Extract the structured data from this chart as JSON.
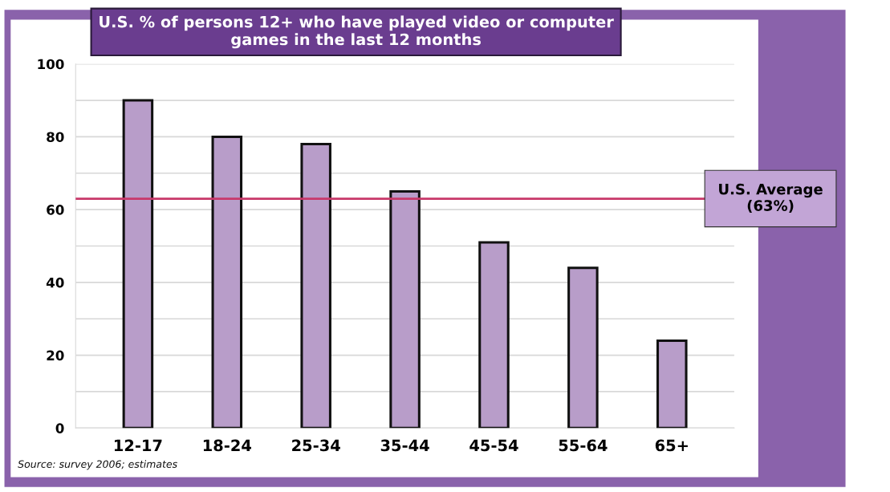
{
  "chart_data": {
    "type": "bar",
    "title": "U.S. % of persons 12+ who have played video or computer\ngames in the last 12 months",
    "categories": [
      "12-17",
      "18-24",
      "25-34",
      "35-44",
      "45-54",
      "55-64",
      "65+"
    ],
    "values": [
      90,
      80,
      78,
      65,
      51,
      44,
      24
    ],
    "color": "#b89dc9",
    "ylim": [
      0,
      100
    ],
    "yticks": [
      0,
      {
        "value": 10,
        "label": null
      },
      20,
      {
        "value": 30,
        "label": null
      },
      40,
      {
        "value": 50,
        "label": null
      },
      60,
      {
        "value": 70,
        "label": null
      },
      80,
      {
        "value": 90,
        "label": null
      },
      100
    ],
    "grid": "y",
    "ref_lines": [
      {
        "axis": "y",
        "value": 63,
        "label": "U.S. Average\n(63%)",
        "color": "#c8386a"
      }
    ],
    "annotations": [
      "Source: survey 2006; estimates"
    ]
  }
}
